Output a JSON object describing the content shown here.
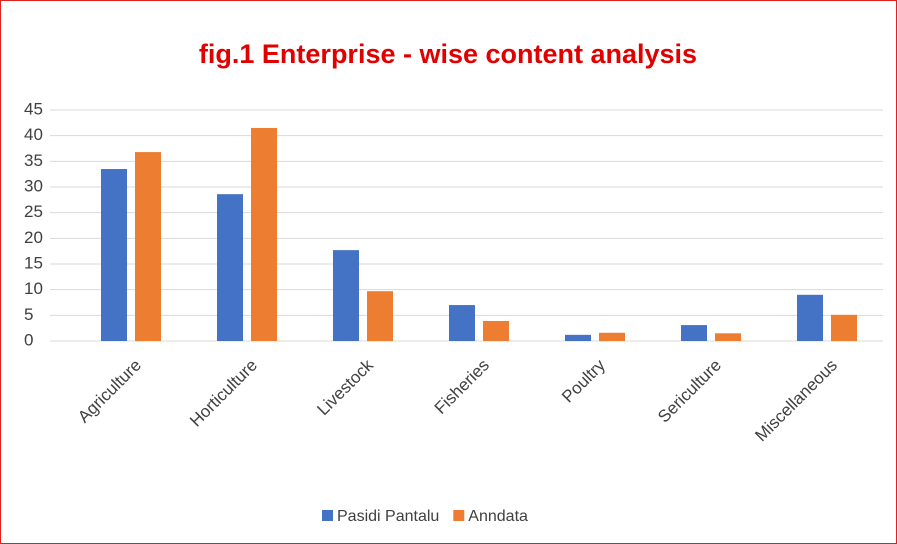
{
  "chart_data": {
    "type": "bar",
    "title": "fig.1 Enterprise - wise content analysis",
    "categories": [
      "Agriculture",
      "Horticulture",
      "Livestock",
      "Fisheries",
      "Poultry",
      "Sericulture",
      "Miscellaneous"
    ],
    "series": [
      {
        "name": "Pasidi Pantalu",
        "color": "#4472c4",
        "values": [
          33.5,
          28.6,
          17.7,
          7.0,
          1.2,
          3.1,
          9.0
        ]
      },
      {
        "name": "Anndata",
        "color": "#ed7d31",
        "values": [
          36.8,
          41.5,
          9.7,
          3.9,
          1.6,
          1.5,
          5.1
        ]
      }
    ],
    "ylim": [
      0,
      45
    ],
    "yticks": [
      0,
      5,
      10,
      15,
      20,
      25,
      30,
      35,
      40,
      45
    ],
    "grid": true,
    "legend": "bottom"
  }
}
